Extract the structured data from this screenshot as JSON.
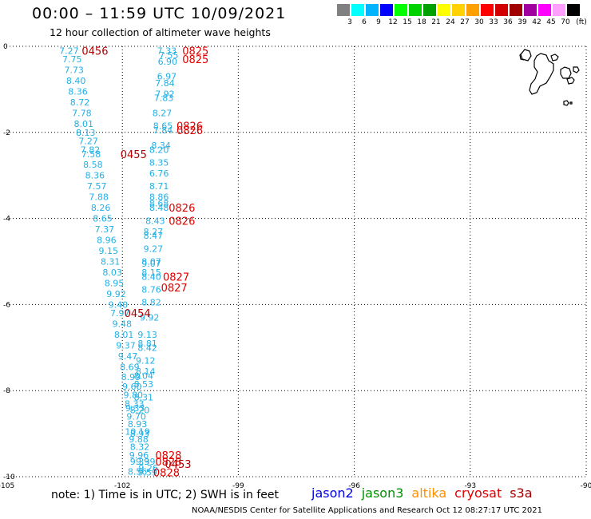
{
  "header": {
    "title": "00:00 – 11:59 UTC 10/09/2021",
    "subtitle": "12 hour collection of altimeter wave heights"
  },
  "colorbar": {
    "colors": [
      "#808080",
      "#00ffff",
      "#00b4ff",
      "#0000ff",
      "#00ff00",
      "#00d200",
      "#00a000",
      "#ffff00",
      "#ffd200",
      "#ffa000",
      "#ff0000",
      "#d20000",
      "#a00000",
      "#a000a0",
      "#ff00ff",
      "#ffa0ff",
      "#000000"
    ],
    "labels": [
      "3",
      "6",
      "9",
      "12",
      "15",
      "18",
      "21",
      "24",
      "27",
      "30",
      "33",
      "36",
      "39",
      "42",
      "45",
      "70"
    ],
    "unit": "(ft)"
  },
  "axes": {
    "x_ticks": [
      "-105",
      "-102",
      "-99",
      "-96",
      "-93",
      "-90"
    ],
    "y_ticks": [
      "0",
      "-2",
      "-4",
      "-6",
      "-8",
      "-10"
    ]
  },
  "note": "note:  1) Time is in UTC; 2) SWH is in feet",
  "legend": [
    {
      "name": "jason2",
      "color": "#0000e0"
    },
    {
      "name": "jason3",
      "color": "#009000"
    },
    {
      "name": "altika",
      "color": "#ff9000"
    },
    {
      "name": "cryosat",
      "color": "#e00000"
    },
    {
      "name": "s3a",
      "color": "#a00000"
    }
  ],
  "credit": "NOAA/NESDIS Center for Satellite Applications and Research    Oct 12 08:27:17 UTC 2021",
  "chart_data": {
    "type": "scatter",
    "xlim": [
      -105,
      -90
    ],
    "ylim": [
      -10,
      0
    ],
    "grid": true,
    "units": "ft",
    "track_a": {
      "color": "#22b0e6",
      "points": [
        [
          -103.38,
          -0.1,
          "7.27"
        ],
        [
          -103.3,
          -0.3,
          "7.75"
        ],
        [
          -103.25,
          -0.55,
          "7.73"
        ],
        [
          -103.2,
          -0.8,
          "8.40"
        ],
        [
          -103.15,
          -1.05,
          "8.36"
        ],
        [
          -103.1,
          -1.3,
          "8.72"
        ],
        [
          -103.05,
          -1.55,
          "7.78"
        ],
        [
          -103.0,
          -1.8,
          "8.01"
        ],
        [
          -102.95,
          -2.0,
          "8.13"
        ],
        [
          -102.88,
          -2.2,
          "7.27"
        ],
        [
          -102.83,
          -2.4,
          "7.82"
        ],
        [
          -102.81,
          -2.5,
          "7.58"
        ],
        [
          -102.76,
          -2.75,
          "8.58"
        ],
        [
          -102.71,
          -3.0,
          "8.36"
        ],
        [
          -102.66,
          -3.25,
          "7.57"
        ],
        [
          -102.61,
          -3.5,
          "7.88"
        ],
        [
          -102.56,
          -3.75,
          "8.26"
        ],
        [
          -102.51,
          -4.0,
          "8.65"
        ],
        [
          -102.46,
          -4.25,
          "7.37"
        ],
        [
          -102.41,
          -4.5,
          "8.96"
        ],
        [
          -102.36,
          -4.75,
          "9.15"
        ],
        [
          -102.31,
          -5.0,
          "8.31"
        ],
        [
          -102.26,
          -5.25,
          "8.03"
        ],
        [
          -102.21,
          -5.5,
          "8.95"
        ],
        [
          -102.16,
          -5.75,
          "9.92"
        ],
        [
          -102.11,
          -6.0,
          "9.40"
        ],
        [
          -102.06,
          -6.2,
          "7.97"
        ],
        [
          -102.01,
          -6.45,
          "9.48"
        ],
        [
          -101.96,
          -6.7,
          "8.01"
        ],
        [
          -101.91,
          -6.95,
          "9.37"
        ],
        [
          -101.86,
          -7.2,
          "9.47"
        ],
        [
          -101.81,
          -7.45,
          "8.69"
        ],
        [
          -101.78,
          -7.68,
          "8.99"
        ],
        [
          -101.75,
          -7.9,
          "9.60"
        ],
        [
          -101.72,
          -8.1,
          "9.80"
        ],
        [
          -101.69,
          -8.3,
          "8.33"
        ],
        [
          -101.67,
          -8.4,
          "9.33"
        ],
        [
          -101.64,
          -8.6,
          "9.70"
        ],
        [
          -101.61,
          -8.78,
          "8.93"
        ],
        [
          -101.61,
          -8.95,
          "10.19"
        ],
        [
          -101.58,
          -9.13,
          "9.88"
        ],
        [
          -101.55,
          -9.3,
          "8.32"
        ],
        [
          -101.57,
          -9.5,
          "9.96"
        ],
        [
          -101.55,
          -9.65,
          "9.39"
        ],
        [
          -101.61,
          -9.88,
          "8.56"
        ]
      ]
    },
    "track_b": {
      "color": "#22b0e6",
      "points": [
        [
          -100.85,
          -0.1,
          "7.33"
        ],
        [
          -100.8,
          -0.2,
          "7.55"
        ],
        [
          -100.83,
          -0.35,
          "6.90"
        ],
        [
          -100.85,
          -0.7,
          "6.97"
        ],
        [
          -100.9,
          -0.85,
          "7.84"
        ],
        [
          -100.9,
          -1.1,
          "7.92"
        ],
        [
          -100.93,
          -1.2,
          "7.83"
        ],
        [
          -100.97,
          -1.55,
          "8.27"
        ],
        [
          -100.95,
          -1.85,
          "8.65"
        ],
        [
          -100.95,
          -1.95,
          "7.84"
        ],
        [
          -101.0,
          -2.3,
          "8.34"
        ],
        [
          -101.05,
          -2.4,
          "8.20"
        ],
        [
          -101.05,
          -2.7,
          "8.35"
        ],
        [
          -101.05,
          -2.95,
          "6.76"
        ],
        [
          -101.05,
          -3.25,
          "8.71"
        ],
        [
          -101.05,
          -3.5,
          "8.86"
        ],
        [
          -101.05,
          -3.65,
          "8.68"
        ],
        [
          -101.05,
          -3.75,
          "8.48"
        ],
        [
          -101.15,
          -4.05,
          "8.43"
        ],
        [
          -101.2,
          -4.3,
          "8.27"
        ],
        [
          -101.2,
          -4.4,
          "8.47"
        ],
        [
          -101.2,
          -4.7,
          "9.27"
        ],
        [
          -101.25,
          -5.0,
          "8.07"
        ],
        [
          -101.25,
          -5.05,
          "9.07"
        ],
        [
          -101.25,
          -5.25,
          "8.15"
        ],
        [
          -101.25,
          -5.35,
          "8.40"
        ],
        [
          -101.25,
          -5.65,
          "8.76"
        ],
        [
          -101.25,
          -5.95,
          "8.82"
        ],
        [
          -101.3,
          -6.3,
          "9.92"
        ],
        [
          -101.35,
          -6.7,
          "9.13"
        ],
        [
          -101.35,
          -6.9,
          "8.81"
        ],
        [
          -101.35,
          -7.0,
          "8.42"
        ],
        [
          -101.4,
          -7.3,
          "9.12"
        ],
        [
          -101.4,
          -7.55,
          "8.14"
        ],
        [
          -101.45,
          -7.65,
          "8.04"
        ],
        [
          -101.45,
          -7.85,
          "8.53"
        ],
        [
          -101.45,
          -8.15,
          "8.31"
        ],
        [
          -101.55,
          -8.45,
          "8.20"
        ],
        [
          -101.55,
          -9.0,
          "8.93"
        ],
        [
          -101.4,
          -9.65,
          "9.39"
        ],
        [
          -101.33,
          -9.8,
          "9.26"
        ],
        [
          -101.35,
          -9.9,
          "9.59"
        ]
      ]
    },
    "time_labels": [
      {
        "lon": -103.05,
        "lat": -0.1,
        "text": "0456",
        "color": "#b00000"
      },
      {
        "lon": -100.45,
        "lat": -0.1,
        "text": "0825",
        "color": "#e00000"
      },
      {
        "lon": -100.45,
        "lat": -0.3,
        "text": "0825",
        "color": "#e00000"
      },
      {
        "lon": -102.05,
        "lat": -2.5,
        "text": "0455",
        "color": "#b00000"
      },
      {
        "lon": -100.6,
        "lat": -1.85,
        "text": "0826",
        "color": "#e00000"
      },
      {
        "lon": -100.6,
        "lat": -1.95,
        "text": "0826",
        "color": "#e00000"
      },
      {
        "lon": -100.8,
        "lat": -3.75,
        "text": "0826",
        "color": "#e00000"
      },
      {
        "lon": -100.8,
        "lat": -4.05,
        "text": "0826",
        "color": "#e00000"
      },
      {
        "lon": -100.95,
        "lat": -5.35,
        "text": "0827",
        "color": "#e00000"
      },
      {
        "lon": -101.0,
        "lat": -5.6,
        "text": "0827",
        "color": "#e00000"
      },
      {
        "lon": -101.95,
        "lat": -6.2,
        "text": "0454",
        "color": "#b00000"
      },
      {
        "lon": -101.15,
        "lat": -9.5,
        "text": "0828",
        "color": "#e00000"
      },
      {
        "lon": -101.15,
        "lat": -9.65,
        "text": "0828",
        "color": "#e00000"
      },
      {
        "lon": -100.9,
        "lat": -9.7,
        "text": "0453",
        "color": "#b00000"
      },
      {
        "lon": -101.2,
        "lat": -9.9,
        "text": "0828",
        "color": "#e00000"
      }
    ]
  }
}
